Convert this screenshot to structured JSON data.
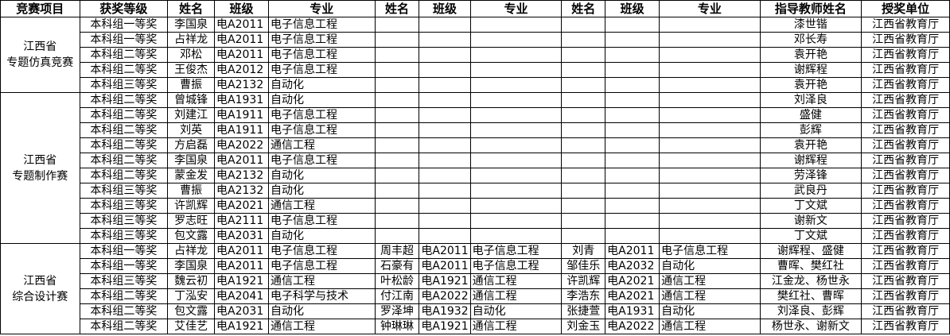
{
  "headers": [
    "竞赛项目",
    "获奖等级",
    "姓名",
    "班级",
    "专业",
    "姓名",
    "班级",
    "专业",
    "姓名",
    "班级",
    "专业",
    "指导教师姓名",
    "授奖单位"
  ],
  "groups": [
    {
      "line1": "江西省",
      "line2": "专题仿真竞赛",
      "rows": [
        [
          "本科组一等奖",
          "李国泉",
          "电A2011",
          "电子信息工程",
          "",
          "",
          "",
          "",
          "",
          "",
          "漆世锴",
          "江西省教育厅"
        ],
        [
          "本科组一等奖",
          "占祥龙",
          "电A2011",
          "电子信息工程",
          "",
          "",
          "",
          "",
          "",
          "",
          "邓长寿",
          "江西省教育厅"
        ],
        [
          "本科组二等奖",
          "邓松",
          "电A2011",
          "电子信息工程",
          "",
          "",
          "",
          "",
          "",
          "",
          "袁开艳",
          "江西省教育厅"
        ],
        [
          "本科组二等奖",
          "王俊杰",
          "电A2012",
          "电子信息工程",
          "",
          "",
          "",
          "",
          "",
          "",
          "谢辉程",
          "江西省教育厅"
        ],
        [
          "本科组三等奖",
          "曹振",
          "电A2132",
          "自动化",
          "",
          "",
          "",
          "",
          "",
          "",
          "袁开艳",
          "江西省教育厅"
        ]
      ]
    },
    {
      "line1": "江西省",
      "line2": "专题制作赛",
      "rows": [
        [
          "本科组二等奖",
          "曾城锋",
          "电A1931",
          "自动化",
          "",
          "",
          "",
          "",
          "",
          "",
          "刘泽良",
          "江西省教育厅"
        ],
        [
          "本科组二等奖",
          "刘建江",
          "电A1911",
          "电子信息工程",
          "",
          "",
          "",
          "",
          "",
          "",
          "盛健",
          "江西省教育厅"
        ],
        [
          "本科组二等奖",
          "刘英",
          "电A1911",
          "电子信息工程",
          "",
          "",
          "",
          "",
          "",
          "",
          "彭辉",
          "江西省教育厅"
        ],
        [
          "本科组二等奖",
          "方启磊",
          "电A2022",
          "通信工程",
          "",
          "",
          "",
          "",
          "",
          "",
          "袁开艳",
          "江西省教育厅"
        ],
        [
          "本科组二等奖",
          "李国泉",
          "电A2011",
          "电子信息工程",
          "",
          "",
          "",
          "",
          "",
          "",
          "谢辉程",
          "江西省教育厅"
        ],
        [
          "本科组二等奖",
          "蒙金发",
          "电A2132",
          "自动化",
          "",
          "",
          "",
          "",
          "",
          "",
          "劳泽锋",
          "江西省教育厅"
        ],
        [
          "本科组三等奖",
          "曹振",
          "电A2132",
          "自动化",
          "",
          "",
          "",
          "",
          "",
          "",
          "武良丹",
          "江西省教育厅"
        ],
        [
          "本科组三等奖",
          "许凯辉",
          "电A2021",
          "通信工程",
          "",
          "",
          "",
          "",
          "",
          "",
          "丁文斌",
          "江西省教育厅"
        ],
        [
          "本科组三等奖",
          "罗志旺",
          "电A2111",
          "电子信息工程",
          "",
          "",
          "",
          "",
          "",
          "",
          "谢新文",
          "江西省教育厅"
        ],
        [
          "本科组三等奖",
          "包文露",
          "电A2031",
          "自动化",
          "",
          "",
          "",
          "",
          "",
          "",
          "丁文斌",
          "江西省教育厅"
        ]
      ]
    },
    {
      "line1": "江西省",
      "line2": "综合设计赛",
      "rows": [
        [
          "本科组一等奖",
          "占祥龙",
          "电A2011",
          "电子信息工程",
          "周丰超",
          "电A2011",
          "电子信息工程",
          "刘青",
          "电A2011",
          "电子信息工程",
          "谢辉程、盛健",
          "江西省教育厅"
        ],
        [
          "本科组一等奖",
          "李国泉",
          "电A2011",
          "电子信息工程",
          "石豪有",
          "电A2011",
          "电子信息工程",
          "邹佳乐",
          "电A2032",
          "自动化",
          "曹晖、樊红社",
          "江西省教育厅"
        ],
        [
          "本科组三等奖",
          "魏云初",
          "电A1921",
          "通信工程",
          "叶松龄",
          "电A1921",
          "通信工程",
          "许凯辉",
          "电A2021",
          "通信工程",
          "江金龙、杨世永",
          "江西省教育厅"
        ],
        [
          "本科组二等奖",
          "丁泓安",
          "电A2041",
          "电子科学与技术",
          "付江南",
          "电A2022",
          "通信工程",
          "李浩东",
          "电A2021",
          "通信工程",
          "樊红社、曹晖",
          "江西省教育厅"
        ],
        [
          "本科组二等奖",
          "包文露",
          "电A2031",
          "自动化",
          "罗泽坤",
          "电A1932",
          "自动化",
          "张捷萱",
          "电A1931",
          "自动化",
          "刘泽良、彭辉",
          "江西省教育厅"
        ],
        [
          "本科组二等奖",
          "艾佳艺",
          "电A1921",
          "通信工程",
          "钟琳琳",
          "电A1921",
          "通信工程",
          "刘金玉",
          "电A2022",
          "通信工程",
          "杨世永、谢新文",
          "江西省教育厅"
        ]
      ]
    }
  ]
}
